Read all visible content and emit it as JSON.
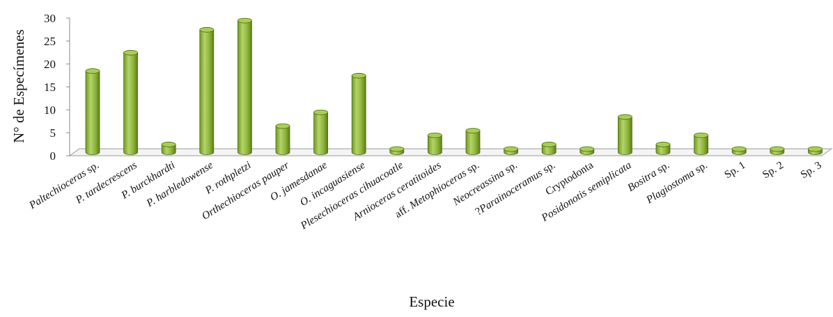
{
  "chart_data": {
    "type": "bar",
    "style": "3d-cylinder",
    "title": "",
    "xlabel": "Especie",
    "ylabel": "N° de Especímenes",
    "ylim": [
      0,
      30
    ],
    "yticks": [
      0,
      5,
      10,
      15,
      20,
      25,
      30
    ],
    "grid": false,
    "bar_color": "#8db33b",
    "categories": [
      {
        "parts": [
          {
            "t": "Paltechioceras",
            "i": true
          },
          {
            "t": " sp.",
            "i": false
          }
        ]
      },
      {
        "parts": [
          {
            "t": "P. tardecrescens",
            "i": true
          }
        ]
      },
      {
        "parts": [
          {
            "t": "P. burckhardti",
            "i": true
          }
        ]
      },
      {
        "parts": [
          {
            "t": "P. harbledowense",
            "i": true
          }
        ]
      },
      {
        "parts": [
          {
            "t": "P. rothpletzi",
            "i": true
          }
        ]
      },
      {
        "parts": [
          {
            "t": "Orthechioceras pauper",
            "i": true
          }
        ]
      },
      {
        "parts": [
          {
            "t": "O. jamesdanae",
            "i": true
          }
        ]
      },
      {
        "parts": [
          {
            "t": "O. incaguasiense",
            "i": true
          }
        ]
      },
      {
        "parts": [
          {
            "t": "Plesechioceras cihuacoatle",
            "i": true
          }
        ]
      },
      {
        "parts": [
          {
            "t": "Arnioceras ceratitoides",
            "i": true
          }
        ]
      },
      {
        "parts": [
          {
            "t": "aff. ",
            "i": false
          },
          {
            "t": "Metophioceras",
            "i": true
          },
          {
            "t": " sp.",
            "i": false
          }
        ]
      },
      {
        "parts": [
          {
            "t": "Neocreassina",
            "i": true
          },
          {
            "t": " sp.",
            "i": false
          }
        ]
      },
      {
        "parts": [
          {
            "t": "?",
            "i": false
          },
          {
            "t": "Parainoceramus",
            "i": true
          },
          {
            "t": " sp.",
            "i": false
          }
        ]
      },
      {
        "parts": [
          {
            "t": "Cryptodonta",
            "i": false
          }
        ]
      },
      {
        "parts": [
          {
            "t": "Posidonotis semiplicata",
            "i": true
          }
        ]
      },
      {
        "parts": [
          {
            "t": "Bositra",
            "i": true
          },
          {
            "t": " sp.",
            "i": false
          }
        ]
      },
      {
        "parts": [
          {
            "t": "Plagiostoma",
            "i": true
          },
          {
            "t": " sp.",
            "i": false
          }
        ]
      },
      {
        "parts": [
          {
            "t": "Sp. 1",
            "i": false
          }
        ]
      },
      {
        "parts": [
          {
            "t": "Sp. 2",
            "i": false
          }
        ]
      },
      {
        "parts": [
          {
            "t": "Sp. 3",
            "i": false
          }
        ]
      }
    ],
    "values": [
      18,
      22,
      2,
      27,
      29,
      6,
      9,
      17,
      1,
      4,
      5,
      1,
      2,
      1,
      8,
      2,
      4,
      1,
      1,
      1
    ]
  }
}
